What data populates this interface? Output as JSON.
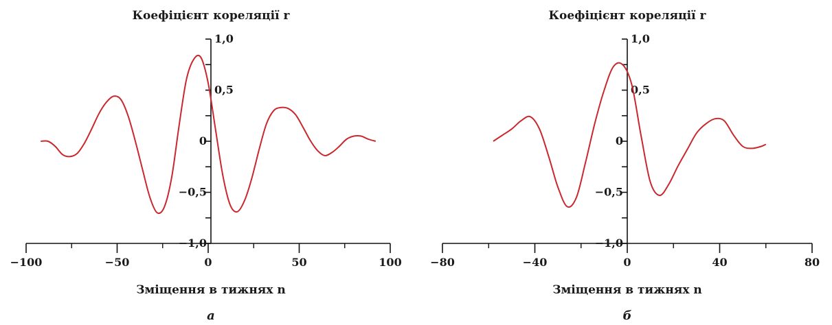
{
  "colors": {
    "line": "#c8282d",
    "axis": "#111111",
    "text": "#1a1a1a"
  },
  "chart_data": [
    {
      "type": "line",
      "title": "Коефіцієнт кореляції r",
      "xlabel": "Зміщення в тижнях n",
      "panel_label": "а",
      "xlim": [
        -100,
        100
      ],
      "ylim": [
        -1.0,
        1.0
      ],
      "x_ticks": [
        -100,
        -50,
        0,
        50,
        100
      ],
      "x_tick_labels": [
        "−100",
        "−50",
        "0",
        "50",
        "100"
      ],
      "y_tick_values": [
        1.0,
        0.5,
        0,
        -0.5,
        -1.0
      ],
      "y_tick_labels": [
        "1,0",
        "0,5",
        "0",
        "−0,5",
        "−1,0"
      ],
      "grid": false,
      "series": [
        {
          "x": [
            -92,
            -88,
            -84,
            -80,
            -76,
            -72,
            -68,
            -64,
            -60,
            -56,
            -52,
            -48,
            -44,
            -40,
            -36,
            -32,
            -28,
            -24,
            -20,
            -16,
            -12,
            -8,
            -4,
            0,
            4,
            8,
            12,
            16,
            20,
            24,
            28,
            32,
            36,
            40,
            44,
            48,
            52,
            56,
            60,
            64,
            68,
            72,
            76,
            80,
            84,
            88,
            92
          ],
          "y": [
            0.0,
            0.0,
            -0.05,
            -0.13,
            -0.15,
            -0.12,
            -0.02,
            0.12,
            0.27,
            0.38,
            0.44,
            0.41,
            0.25,
            0.0,
            -0.28,
            -0.55,
            -0.7,
            -0.64,
            -0.35,
            0.15,
            0.6,
            0.8,
            0.82,
            0.57,
            0.12,
            -0.33,
            -0.62,
            -0.69,
            -0.58,
            -0.36,
            -0.08,
            0.17,
            0.3,
            0.33,
            0.32,
            0.26,
            0.14,
            0.01,
            -0.09,
            -0.14,
            -0.11,
            -0.05,
            0.02,
            0.05,
            0.05,
            0.02,
            0.0
          ]
        }
      ]
    },
    {
      "type": "line",
      "title": "Коефіцієнт кореляції r",
      "xlabel": "Зміщення в тижнях n",
      "panel_label": "б",
      "xlim": [
        -80,
        80
      ],
      "ylim": [
        -1.0,
        1.0
      ],
      "x_ticks": [
        -80,
        -40,
        0,
        40,
        80
      ],
      "x_tick_labels": [
        "−80",
        "−40",
        "0",
        "40",
        "80"
      ],
      "y_tick_values": [
        1.0,
        0.5,
        0,
        -0.5,
        -1.0
      ],
      "y_tick_labels": [
        "1,0",
        "0,5",
        "0",
        "−0,5",
        "−1,0"
      ],
      "grid": false,
      "series": [
        {
          "x": [
            -58,
            -54,
            -50,
            -46,
            -42,
            -38,
            -34,
            -30,
            -26,
            -22,
            -18,
            -14,
            -10,
            -6,
            -2,
            2,
            6,
            10,
            14,
            18,
            22,
            26,
            30,
            34,
            38,
            42,
            46,
            50,
            54,
            58,
            60
          ],
          "y": [
            0.0,
            0.06,
            0.12,
            0.2,
            0.24,
            0.12,
            -0.15,
            -0.45,
            -0.64,
            -0.55,
            -0.2,
            0.18,
            0.5,
            0.73,
            0.75,
            0.55,
            0.05,
            -0.4,
            -0.53,
            -0.42,
            -0.24,
            -0.08,
            0.08,
            0.17,
            0.22,
            0.2,
            0.06,
            -0.05,
            -0.07,
            -0.05,
            -0.03
          ]
        }
      ]
    }
  ]
}
